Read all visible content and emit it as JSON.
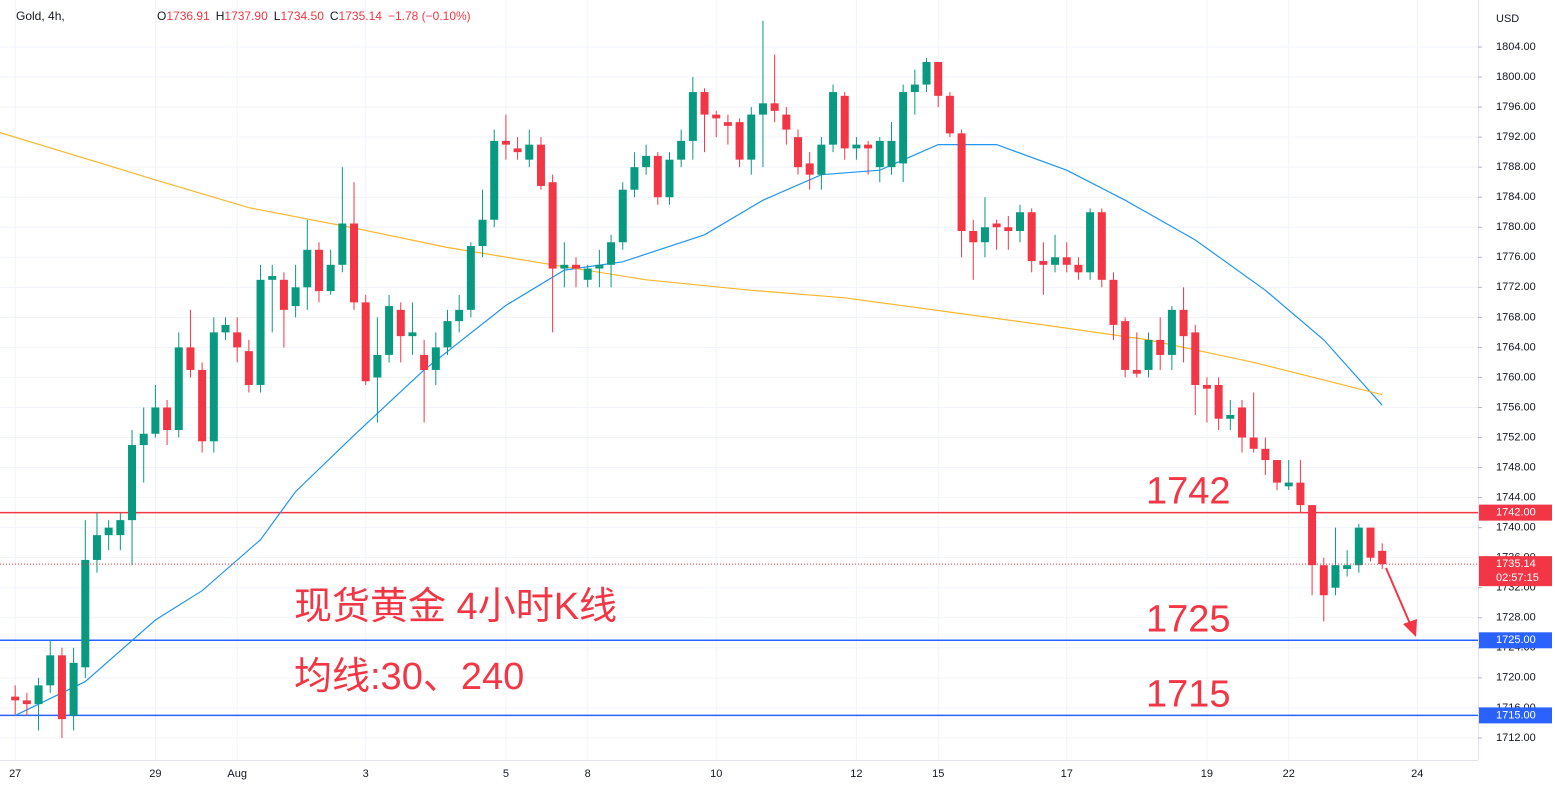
{
  "chart_data": {
    "type": "candlestick",
    "symbol": "Gold, 4h,",
    "ohlc_header": [
      {
        "key": "O",
        "value": "1736.91"
      },
      {
        "key": "H",
        "value": "1737.90"
      },
      {
        "key": "L",
        "value": "1734.50"
      },
      {
        "key": "C",
        "value": "1735.14"
      }
    ],
    "change": "−1.78 (−0.10%)",
    "currency": "USD",
    "up_color": "#089981",
    "down_color": "#f23645",
    "ohlc": [
      [
        1717.5,
        1719,
        1715,
        1717
      ],
      [
        1717,
        1718,
        1715,
        1716.5
      ],
      [
        1716.5,
        1720,
        1713,
        1719
      ],
      [
        1719,
        1725,
        1718,
        1723
      ],
      [
        1723,
        1724,
        1712,
        1714.5
      ],
      [
        1715,
        1724,
        1713,
        1722
      ],
      [
        1721.4,
        1741,
        1720,
        1735.7
      ],
      [
        1735.7,
        1742,
        1734,
        1739
      ],
      [
        1739,
        1741,
        1737,
        1740
      ],
      [
        1739,
        1742,
        1737,
        1741
      ],
      [
        1741,
        1753,
        1735,
        1751
      ],
      [
        1751,
        1756,
        1746,
        1752.5
      ],
      [
        1752.5,
        1759,
        1752,
        1756
      ],
      [
        1756,
        1757,
        1751,
        1753
      ],
      [
        1753,
        1766,
        1752,
        1764
      ],
      [
        1764,
        1769,
        1760,
        1761
      ],
      [
        1761,
        1762,
        1750,
        1751.5
      ],
      [
        1751.5,
        1768,
        1750,
        1766
      ],
      [
        1766,
        1768,
        1765,
        1767
      ],
      [
        1766,
        1768,
        1762,
        1764
      ],
      [
        1763.5,
        1765,
        1758,
        1759
      ],
      [
        1759,
        1775,
        1758,
        1773
      ],
      [
        1773,
        1775,
        1766,
        1773.5
      ],
      [
        1773,
        1774,
        1764,
        1769
      ],
      [
        1769.5,
        1775,
        1768,
        1772
      ],
      [
        1772,
        1781,
        1769,
        1777
      ],
      [
        1777,
        1778,
        1770,
        1771.5
      ],
      [
        1771.5,
        1777,
        1771,
        1775
      ],
      [
        1775,
        1788,
        1774,
        1780.5
      ],
      [
        1780.5,
        1786,
        1769,
        1770
      ],
      [
        1770,
        1771,
        1759,
        1759.5
      ],
      [
        1760,
        1768,
        1754,
        1763
      ],
      [
        1763,
        1771,
        1762,
        1769.5
      ],
      [
        1769,
        1770,
        1762,
        1765.5
      ],
      [
        1765.5,
        1770,
        1763,
        1766
      ],
      [
        1763,
        1765,
        1754,
        1761
      ],
      [
        1761,
        1766,
        1759,
        1764
      ],
      [
        1764,
        1769,
        1763,
        1767.5
      ],
      [
        1767.5,
        1771,
        1766,
        1769
      ],
      [
        1769,
        1778,
        1768,
        1777.5
      ],
      [
        1777.5,
        1785,
        1776,
        1781
      ],
      [
        1781,
        1793,
        1780,
        1791.5
      ],
      [
        1791.5,
        1795,
        1789,
        1791
      ],
      [
        1790.5,
        1792,
        1789,
        1790
      ],
      [
        1789,
        1793,
        1788,
        1791
      ],
      [
        1791,
        1792,
        1785,
        1785.5
      ],
      [
        1786,
        1787,
        1766,
        1774.5
      ],
      [
        1774.5,
        1778,
        1772,
        1775
      ],
      [
        1775,
        1776,
        1772,
        1774.5
      ],
      [
        1773,
        1775,
        1772,
        1774.5
      ],
      [
        1774.5,
        1777,
        1772,
        1775
      ],
      [
        1775,
        1779,
        1772,
        1778
      ],
      [
        1778,
        1786,
        1777,
        1785
      ],
      [
        1785,
        1790,
        1784,
        1788
      ],
      [
        1788,
        1791,
        1787,
        1789.5
      ],
      [
        1789.5,
        1790,
        1783,
        1784
      ],
      [
        1784,
        1790,
        1783,
        1789
      ],
      [
        1789,
        1793,
        1788,
        1791.5
      ],
      [
        1791.5,
        1800,
        1789,
        1798
      ],
      [
        1798,
        1798.5,
        1790,
        1795
      ],
      [
        1795,
        1795.5,
        1792,
        1794.5
      ],
      [
        1794,
        1795,
        1791,
        1793.5
      ],
      [
        1794,
        1794.5,
        1788,
        1789
      ],
      [
        1789,
        1796,
        1787,
        1795
      ],
      [
        1795,
        1807.5,
        1788,
        1796.5
      ],
      [
        1796.5,
        1803,
        1794,
        1795.5
      ],
      [
        1795,
        1796,
        1791,
        1793
      ],
      [
        1792,
        1793,
        1787,
        1788
      ],
      [
        1788.5,
        1790,
        1785,
        1787
      ],
      [
        1787,
        1792,
        1785,
        1791
      ],
      [
        1791,
        1799,
        1790,
        1798
      ],
      [
        1797.5,
        1798,
        1789,
        1790.5
      ],
      [
        1790.5,
        1792,
        1789,
        1791
      ],
      [
        1791,
        1791.5,
        1787,
        1790.5
      ],
      [
        1788,
        1792,
        1786,
        1791.5
      ],
      [
        1788,
        1794,
        1787,
        1791.5
      ],
      [
        1788.5,
        1799,
        1786,
        1798
      ],
      [
        1798,
        1801,
        1795,
        1799
      ],
      [
        1799,
        1802.5,
        1798,
        1802
      ],
      [
        1802,
        1802,
        1796,
        1797.5
      ],
      [
        1797.5,
        1798,
        1792,
        1792.5
      ],
      [
        1792.5,
        1793,
        1776,
        1779.5
      ],
      [
        1779.5,
        1781,
        1773,
        1778
      ],
      [
        1778,
        1784,
        1776,
        1780
      ],
      [
        1780.5,
        1781,
        1777,
        1780
      ],
      [
        1780,
        1781.5,
        1777,
        1779.5
      ],
      [
        1779.5,
        1783,
        1778,
        1782
      ],
      [
        1782,
        1782.5,
        1774,
        1775.5
      ],
      [
        1775.5,
        1778,
        1771,
        1775
      ],
      [
        1775,
        1779,
        1774,
        1776
      ],
      [
        1776,
        1778,
        1774,
        1775
      ],
      [
        1775,
        1776,
        1773,
        1774
      ],
      [
        1774,
        1782.5,
        1773,
        1782
      ],
      [
        1782,
        1782.5,
        1772,
        1773
      ],
      [
        1773,
        1774,
        1765,
        1767
      ],
      [
        1767.5,
        1768,
        1760,
        1761
      ],
      [
        1761,
        1766,
        1760,
        1760.5
      ],
      [
        1761,
        1766,
        1760,
        1765
      ],
      [
        1765,
        1768,
        1761,
        1763
      ],
      [
        1763,
        1769.5,
        1761,
        1769
      ],
      [
        1769,
        1772,
        1762,
        1765.5
      ],
      [
        1766,
        1767,
        1755,
        1759
      ],
      [
        1759,
        1760,
        1754,
        1758.5
      ],
      [
        1759,
        1760,
        1753,
        1754.5
      ],
      [
        1754.5,
        1757,
        1753,
        1755
      ],
      [
        1756,
        1757,
        1750,
        1752
      ],
      [
        1752,
        1758,
        1750,
        1750.5
      ],
      [
        1750.5,
        1752,
        1747,
        1749
      ],
      [
        1749,
        1749,
        1745,
        1746
      ],
      [
        1745.5,
        1749,
        1745,
        1746
      ],
      [
        1746,
        1749,
        1742,
        1743
      ],
      [
        1743,
        1743,
        1731,
        1735
      ],
      [
        1735,
        1736,
        1727.5,
        1731
      ],
      [
        1732,
        1740,
        1731,
        1735
      ],
      [
        1734.5,
        1737,
        1733.5,
        1735
      ],
      [
        1735,
        1740.5,
        1734,
        1740
      ],
      [
        1740,
        1740,
        1735.5,
        1736
      ],
      [
        1736.91,
        1737.9,
        1734.5,
        1735.14
      ]
    ],
    "xlim": [
      -1.3,
      125.2
    ],
    "xticks": [
      {
        "value": 0,
        "label": "27"
      },
      {
        "value": 12,
        "label": "29"
      },
      {
        "value": 19,
        "label": "Aug"
      },
      {
        "value": 30,
        "label": "3"
      },
      {
        "value": 42,
        "label": "5"
      },
      {
        "value": 49,
        "label": "8"
      },
      {
        "value": 60,
        "label": "10"
      },
      {
        "value": 72,
        "label": "12"
      },
      {
        "value": 79,
        "label": "15"
      },
      {
        "value": 90,
        "label": "17"
      },
      {
        "value": 102,
        "label": "19"
      },
      {
        "value": 109,
        "label": "22"
      },
      {
        "value": 120,
        "label": "24"
      }
    ],
    "ylim": [
      1709.06,
      1810.26
    ],
    "yticks": [
      {
        "value": 1712,
        "label": "1712.00"
      },
      {
        "value": 1716,
        "label": "1716.00"
      },
      {
        "value": 1720,
        "label": "1720.00"
      },
      {
        "value": 1724,
        "label": "1724.00"
      },
      {
        "value": 1728,
        "label": "1728.00"
      },
      {
        "value": 1732,
        "label": "1732.00"
      },
      {
        "value": 1736,
        "label": "1736.00"
      },
      {
        "value": 1740,
        "label": "1740.00"
      },
      {
        "value": 1744,
        "label": "1744.00"
      },
      {
        "value": 1748,
        "label": "1748.00"
      },
      {
        "value": 1752,
        "label": "1752.00"
      },
      {
        "value": 1756,
        "label": "1756.00"
      },
      {
        "value": 1760,
        "label": "1760.00"
      },
      {
        "value": 1764,
        "label": "1764.00"
      },
      {
        "value": 1768,
        "label": "1768.00"
      },
      {
        "value": 1772,
        "label": "1772.00"
      },
      {
        "value": 1776,
        "label": "1776.00"
      },
      {
        "value": 1780,
        "label": "1780.00"
      },
      {
        "value": 1784,
        "label": "1784.00"
      },
      {
        "value": 1788,
        "label": "1788.00"
      },
      {
        "value": 1792,
        "label": "1792.00"
      },
      {
        "value": 1796,
        "label": "1796.00"
      },
      {
        "value": 1800,
        "label": "1800.00"
      },
      {
        "value": 1804,
        "label": "1804.00"
      }
    ],
    "grid": true,
    "moving_averages": [
      {
        "color": "#2196f3",
        "x": [
          0,
          6,
          12,
          16,
          21,
          24,
          29,
          35,
          42,
          47,
          52,
          59,
          64,
          69,
          74,
          79,
          84,
          90,
          95,
          101,
          107,
          112,
          117
        ],
        "values": [
          1715,
          1719.5,
          1727.7,
          1731.6,
          1738.4,
          1744.8,
          1752.3,
          1761,
          1769.6,
          1774.3,
          1775.4,
          1779,
          1783.6,
          1787,
          1787.6,
          1791,
          1791,
          1787.6,
          1783.6,
          1778.3,
          1771.6,
          1765,
          1756.3
        ]
      },
      {
        "color": "#f5b82e",
        "x": [
          -1.3,
          12,
          20,
          29,
          37,
          46,
          54,
          63,
          71,
          80,
          88,
          97,
          106,
          117
        ],
        "values": [
          1792.6,
          1786.3,
          1782.6,
          1779.9,
          1777.3,
          1775,
          1773,
          1771.6,
          1770.6,
          1768.7,
          1767,
          1765,
          1762,
          1757.7
        ]
      }
    ],
    "price_lines": [
      {
        "value": 1742,
        "label": "1742.00",
        "color": "#f23645"
      },
      {
        "value": 1725,
        "label": "1725.00",
        "color": "#2962ff"
      },
      {
        "value": 1715,
        "label": "1715.00",
        "color": "#2962ff"
      }
    ],
    "current_price": {
      "value": 1735.14,
      "countdown": "02:57:15",
      "color": "#f23645"
    },
    "annotations": [
      "现货黄金 4小时K线",
      "均线:30、240"
    ]
  }
}
